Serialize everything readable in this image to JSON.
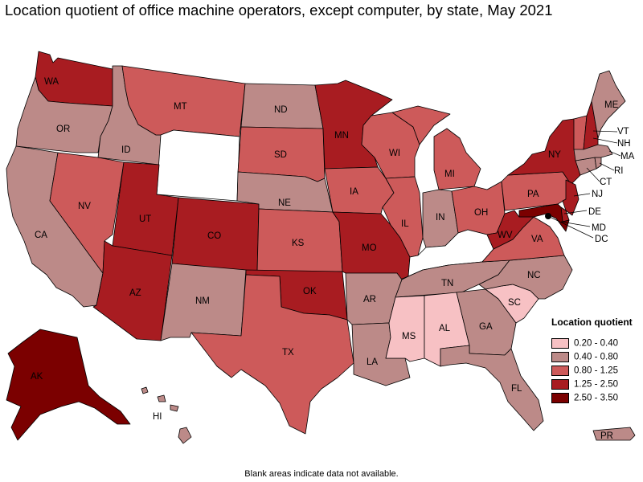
{
  "title": "Location quotient of office machine operators, except computer, by state, May 2021",
  "footnote": "Blank areas indicate data not available.",
  "legend": {
    "title": "Location quotient",
    "items": [
      {
        "label": "0.20 - 0.40",
        "color": "#f7c1c4"
      },
      {
        "label": "0.40 - 0.80",
        "color": "#bc8a88"
      },
      {
        "label": "0.80 - 1.25",
        "color": "#cd5a5a"
      },
      {
        "label": "1.25 - 2.50",
        "color": "#a81c21"
      },
      {
        "label": "2.50 - 3.50",
        "color": "#7b0000"
      }
    ]
  },
  "no_data_color": "#ffffff",
  "states": {
    "WA": {
      "label": "WA",
      "class": 3
    },
    "OR": {
      "label": "OR",
      "class": 1
    },
    "CA": {
      "label": "CA",
      "class": 1
    },
    "ID": {
      "label": "ID",
      "class": 1
    },
    "NV": {
      "label": "NV",
      "class": 2
    },
    "MT": {
      "label": "MT",
      "class": 2
    },
    "WY": {
      "label": "",
      "class": -1
    },
    "UT": {
      "label": "UT",
      "class": 3
    },
    "AZ": {
      "label": "AZ",
      "class": 3
    },
    "CO": {
      "label": "CO",
      "class": 3
    },
    "NM": {
      "label": "NM",
      "class": 1
    },
    "ND": {
      "label": "ND",
      "class": 1
    },
    "SD": {
      "label": "SD",
      "class": 2
    },
    "NE": {
      "label": "NE",
      "class": 1
    },
    "KS": {
      "label": "KS",
      "class": 2
    },
    "OK": {
      "label": "OK",
      "class": 3
    },
    "TX": {
      "label": "TX",
      "class": 2
    },
    "MN": {
      "label": "MN",
      "class": 3
    },
    "IA": {
      "label": "IA",
      "class": 2
    },
    "MO": {
      "label": "MO",
      "class": 3
    },
    "AR": {
      "label": "AR",
      "class": 1
    },
    "LA": {
      "label": "LA",
      "class": 1
    },
    "WI": {
      "label": "WI",
      "class": 2
    },
    "IL": {
      "label": "IL",
      "class": 2
    },
    "MI": {
      "label": "MI",
      "class": 2
    },
    "IN": {
      "label": "IN",
      "class": 1
    },
    "OH": {
      "label": "OH",
      "class": 2
    },
    "KY": {
      "label": "",
      "class": -1
    },
    "TN": {
      "label": "TN",
      "class": 1
    },
    "MS": {
      "label": "MS",
      "class": 0
    },
    "AL": {
      "label": "AL",
      "class": 0
    },
    "GA": {
      "label": "GA",
      "class": 1
    },
    "FL": {
      "label": "FL",
      "class": 1
    },
    "SC": {
      "label": "SC",
      "class": 0
    },
    "NC": {
      "label": "NC",
      "class": 1
    },
    "VA": {
      "label": "VA",
      "class": 2
    },
    "WV": {
      "label": "WV",
      "class": 3
    },
    "PA": {
      "label": "PA",
      "class": 2
    },
    "NY": {
      "label": "NY",
      "class": 3
    },
    "NJ": {
      "label": "NJ",
      "class": 3
    },
    "DE": {
      "label": "DE",
      "class": 3
    },
    "MD": {
      "label": "MD",
      "class": 4
    },
    "DC": {
      "label": "DC",
      "class": 4
    },
    "CT": {
      "label": "CT",
      "class": 1
    },
    "RI": {
      "label": "RI",
      "class": 1
    },
    "MA": {
      "label": "MA",
      "class": 1
    },
    "VT": {
      "label": "VT",
      "class": 2
    },
    "NH": {
      "label": "NH",
      "class": 3
    },
    "ME": {
      "label": "ME",
      "class": 1
    },
    "AK": {
      "label": "AK",
      "class": 4
    },
    "HI": {
      "label": "HI",
      "class": 1
    },
    "PR": {
      "label": "PR",
      "class": 1
    }
  }
}
